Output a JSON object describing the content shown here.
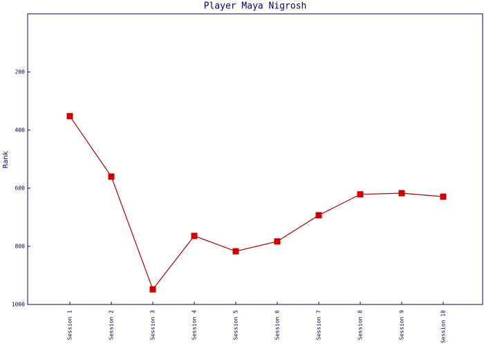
{
  "chart_data": {
    "type": "line",
    "title": "Player Maya Nigrosh",
    "y_label": "Rank",
    "categories": [
      "Session 1",
      "Session 2",
      "Session 3",
      "Session 4",
      "Session 5",
      "Session 6",
      "Session 7",
      "Session 8",
      "Session 9",
      "Session 10"
    ],
    "series": [
      {
        "name": "Rank",
        "color": "#aa0000",
        "marker_color": "#cc0000",
        "values": [
          352,
          560,
          948,
          764,
          817,
          783,
          693,
          621,
          617,
          629
        ]
      }
    ],
    "ylim": [
      0,
      1000
    ],
    "y_inverted": true,
    "yticks": [
      200,
      400,
      600,
      800,
      1000
    ],
    "grid": false
  }
}
